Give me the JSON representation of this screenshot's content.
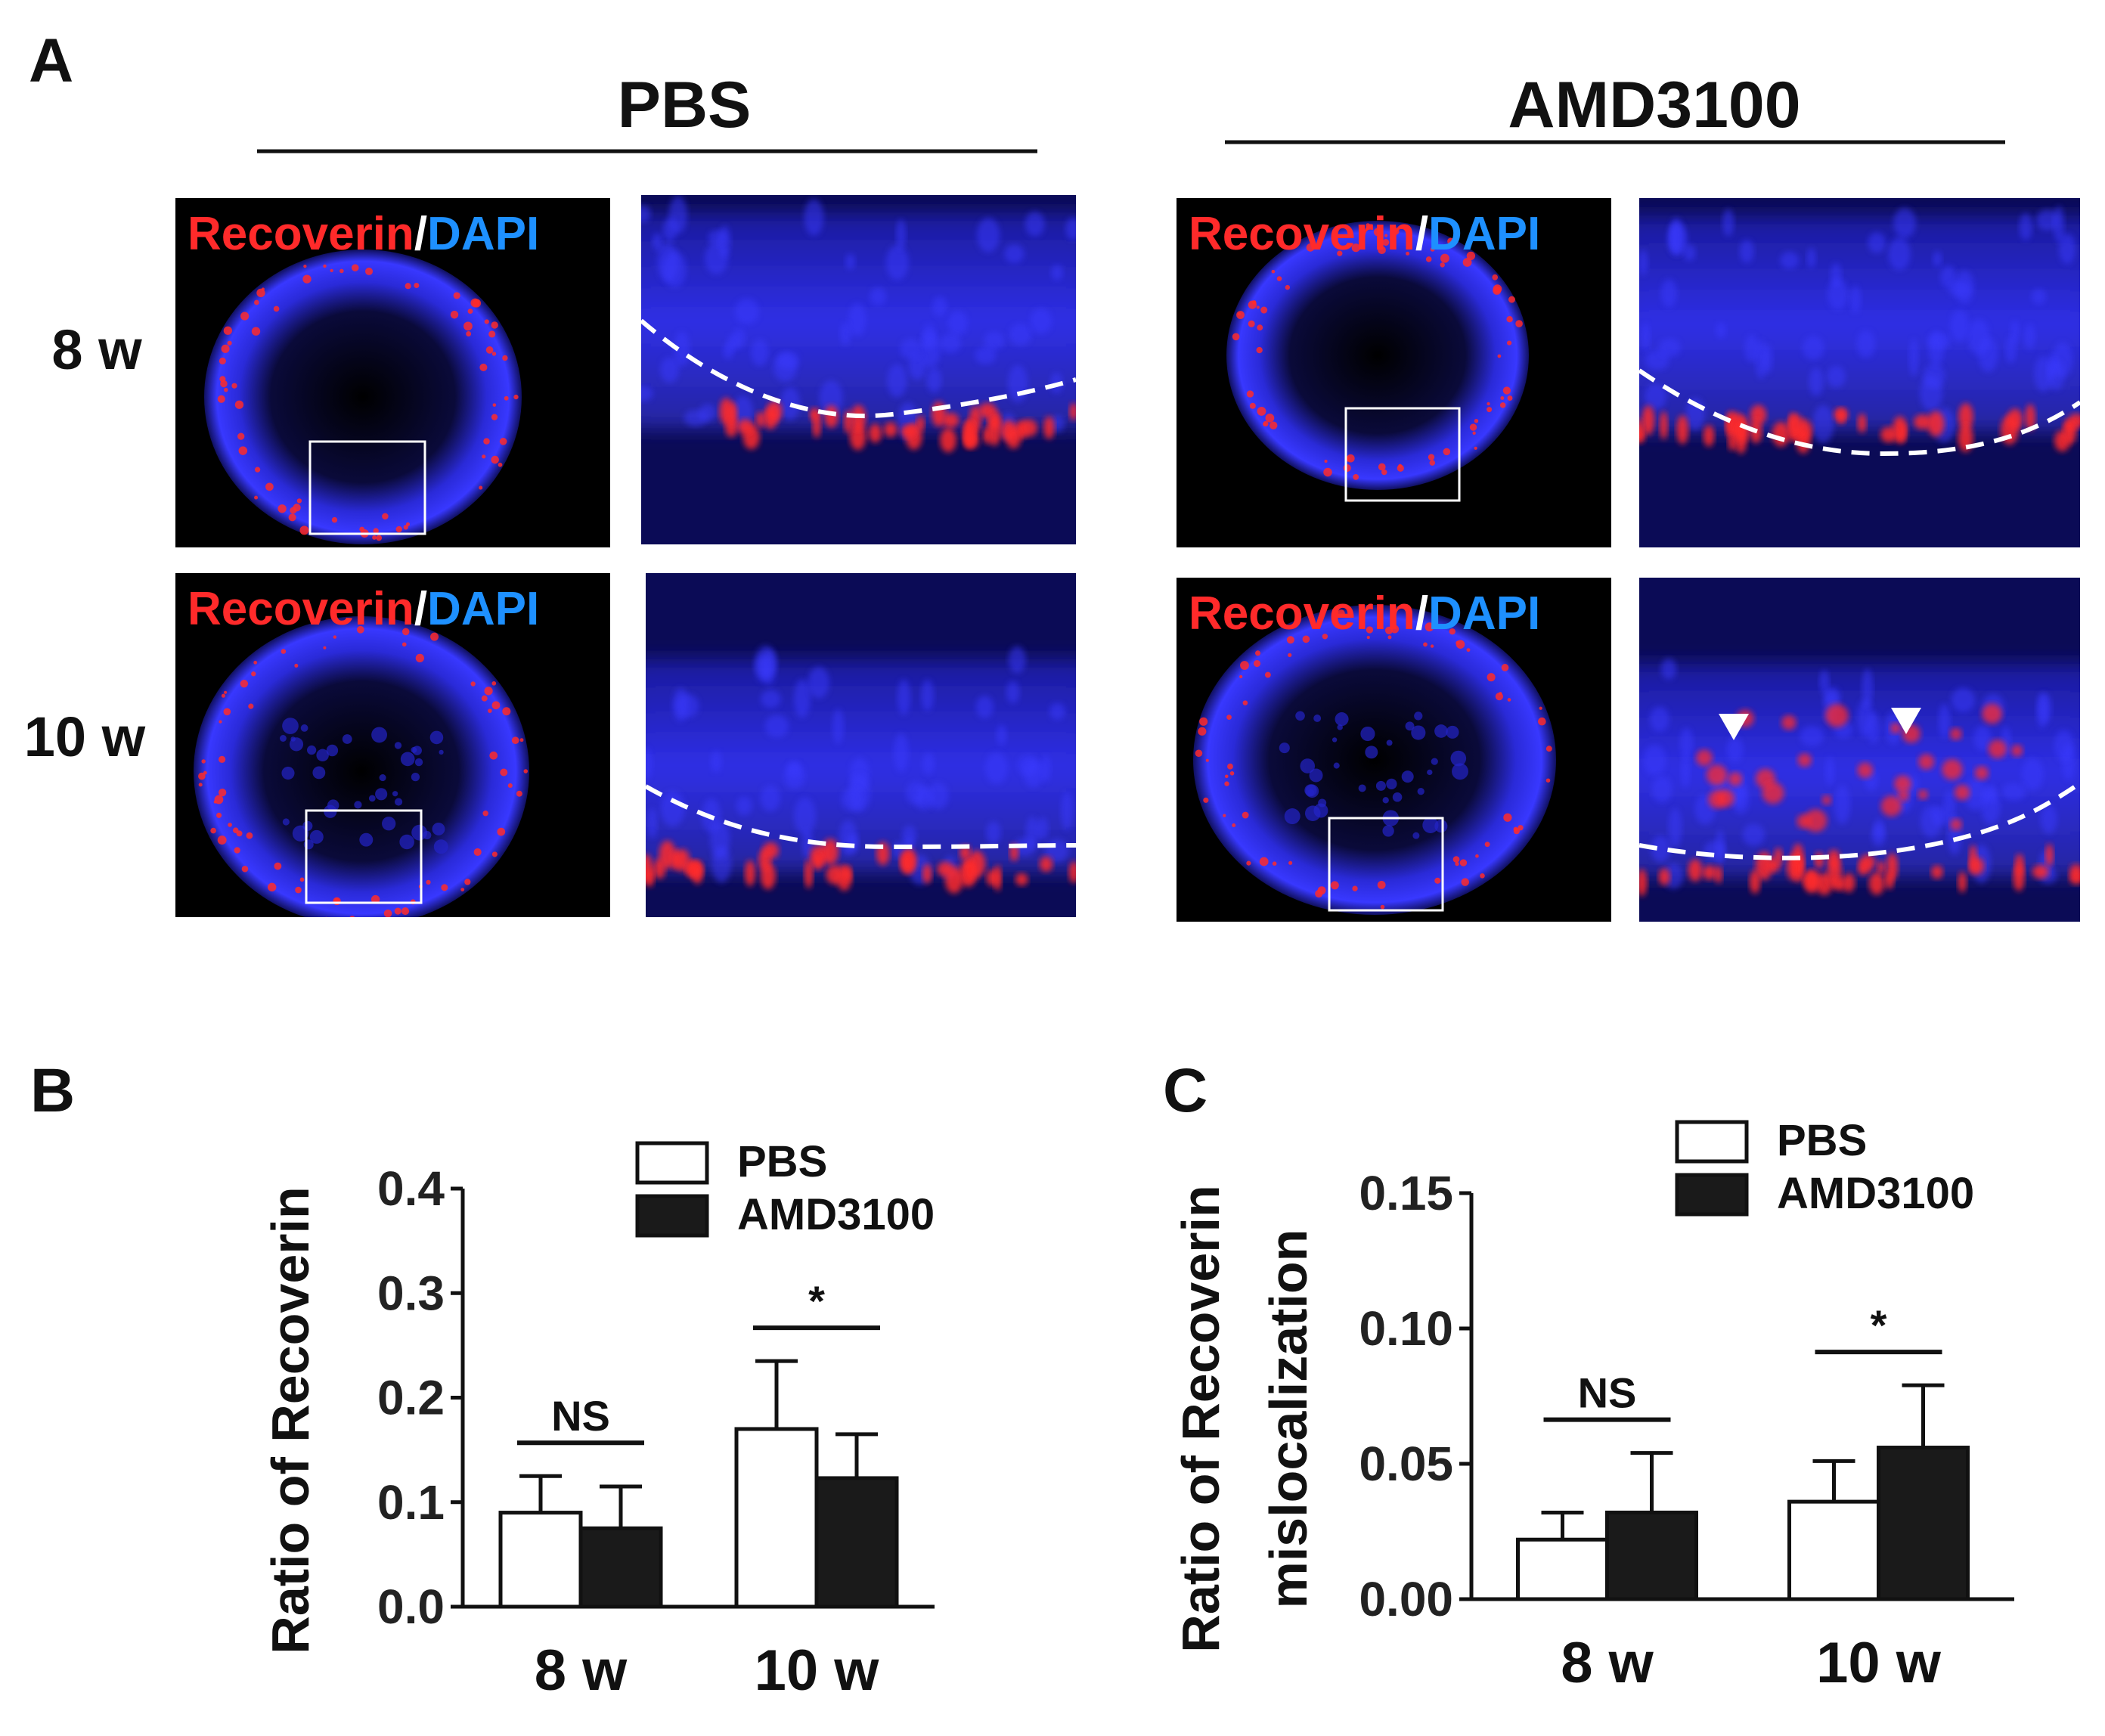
{
  "panel_a": {
    "letter": "A",
    "groups": [
      "PBS",
      "AMD3100"
    ],
    "rows": [
      "8 w",
      "10 w"
    ],
    "stain_a": "Recoverin",
    "stain_sep": "/",
    "stain_b": "DAPI",
    "colors": {
      "stain_a": "#ff2a2a",
      "stain_b": "#1e90ff",
      "background": "#000000",
      "nuclei": "#2323c8"
    }
  },
  "chart_data": [
    {
      "type": "bar",
      "panel": "B",
      "categories": [
        "8 w",
        "10 w"
      ],
      "series": [
        {
          "name": "PBS",
          "values": [
            0.09,
            0.17
          ],
          "errors": [
            0.035,
            0.065
          ],
          "color": "#ffffff"
        },
        {
          "name": "AMD3100",
          "values": [
            0.075,
            0.123
          ],
          "errors": [
            0.04,
            0.042
          ],
          "color": "#1a1a1a"
        }
      ],
      "ylabel": "Ratio of Recoverin",
      "ylim": [
        0,
        0.4
      ],
      "yticks": [
        "0.0",
        "0.1",
        "0.2",
        "0.3",
        "0.4"
      ],
      "significance": [
        "NS",
        "*"
      ],
      "legend": "top-right",
      "grid": false
    },
    {
      "type": "bar",
      "panel": "C",
      "categories": [
        "8 w",
        "10 w"
      ],
      "series": [
        {
          "name": "PBS",
          "values": [
            0.022,
            0.036
          ],
          "errors": [
            0.01,
            0.015
          ],
          "color": "#ffffff"
        },
        {
          "name": "AMD3100",
          "values": [
            0.032,
            0.056
          ],
          "errors": [
            0.022,
            0.023
          ],
          "color": "#1a1a1a"
        }
      ],
      "ylabel": [
        "Ratio of Recoverin",
        "mislocalization"
      ],
      "ylim": [
        0,
        0.15
      ],
      "yticks": [
        "0.00",
        "0.05",
        "0.10",
        "0.15"
      ],
      "significance": [
        "NS",
        "*"
      ],
      "legend": "top-right",
      "grid": false
    }
  ]
}
